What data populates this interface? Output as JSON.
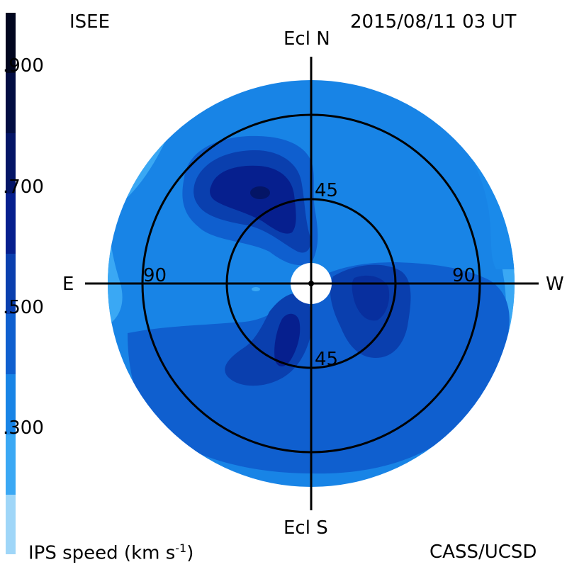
{
  "header": {
    "left": "ISEE",
    "datetime": "2015/08/11 03 UT",
    "credit": "CASS/UCSD"
  },
  "colorbar": {
    "label": "IPS speed (km s",
    "label_sup": "-1",
    "label_close": ")",
    "ticks": [
      ".900",
      ".700",
      ".500",
      ".300"
    ],
    "bins": [
      {
        "range": "<200",
        "color": "#9fd6f8"
      },
      {
        "range": "200-300",
        "color": "#3aa8f4"
      },
      {
        "range": "300-400",
        "color": "#1884e6"
      },
      {
        "range": "400-500",
        "color": "#0f5fcf"
      },
      {
        "range": "500-600",
        "color": "#0a3fae"
      },
      {
        "range": "600-700",
        "color": "#061f8e"
      },
      {
        "range": "700-800",
        "color": "#041566"
      },
      {
        "range": "800-900",
        "color": "#020d42"
      },
      {
        "range": ">900",
        "color": "#01061f"
      }
    ]
  },
  "map": {
    "north": "Ecl N",
    "south": "Ecl S",
    "east": "E",
    "west": "W",
    "ring_labels": {
      "inner_top": "45",
      "inner_bottom": "45",
      "outer_left": "90",
      "outer_right": "90"
    },
    "background_color": "#1884e6"
  }
}
